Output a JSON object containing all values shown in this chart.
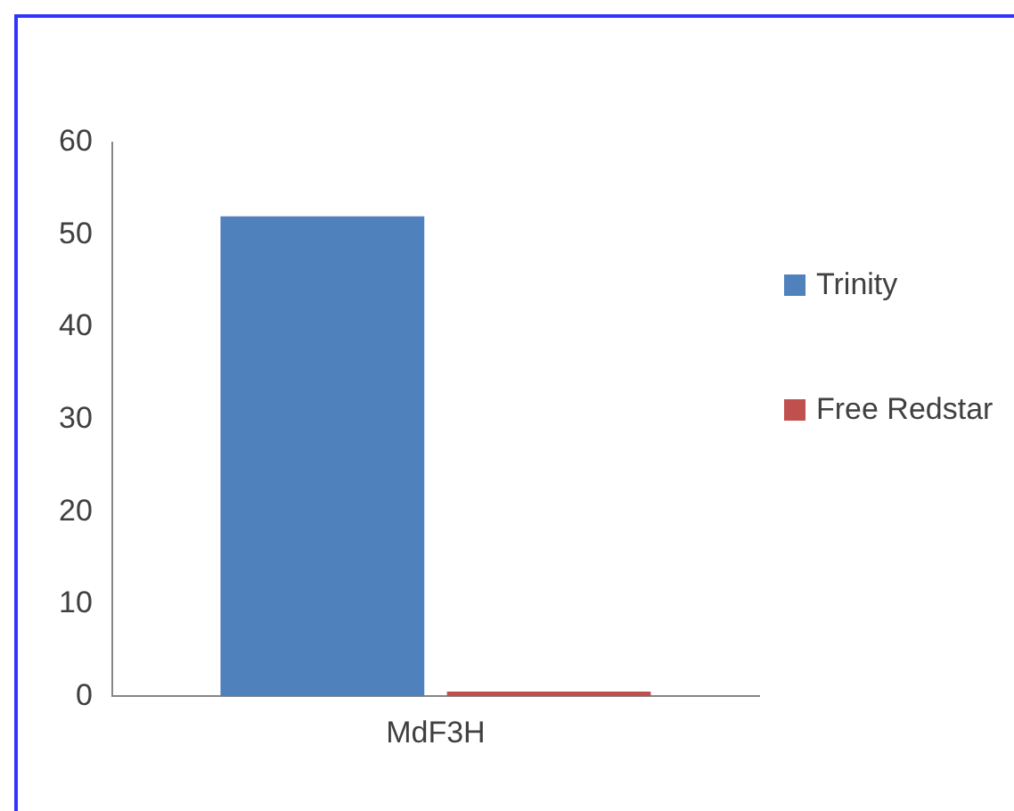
{
  "chart_data": {
    "type": "bar",
    "categories": [
      "MdF3H"
    ],
    "series": [
      {
        "name": "Trinity",
        "color": "#4f81bd",
        "values": [
          52
        ]
      },
      {
        "name": "Free Redstar",
        "color": "#c0504d",
        "values": [
          0.5
        ]
      }
    ],
    "ylim": [
      0,
      60
    ],
    "yticks": [
      0,
      10,
      20,
      30,
      40,
      50,
      60
    ],
    "grid": false,
    "legend": "right"
  }
}
